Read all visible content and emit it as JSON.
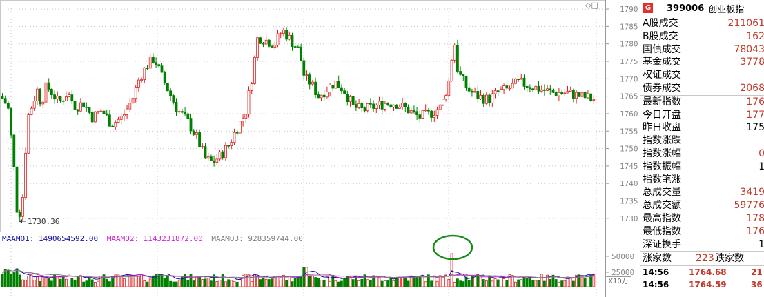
{
  "chart_data": {
    "type": "candlestick",
    "y_axis_ticks": [
      "1790",
      "1785",
      "1780",
      "1775",
      "1770",
      "1765",
      "1760",
      "1755",
      "1750",
      "1745",
      "1740",
      "1735",
      "1730"
    ],
    "ylim": [
      1727,
      1791
    ],
    "low_annotation": "1730.36",
    "volume_axis_ticks": [
      "50000",
      "25000"
    ],
    "volume_units": "X10万",
    "ma_legend": [
      {
        "label": "MAAMO1: 1490654592.00",
        "color": "#1010a0"
      },
      {
        "label": "MAAMO2: 1143231872.00",
        "color": "#d020d0"
      },
      {
        "label": "MAAMO3: 928359744.00",
        "color": "#808080"
      }
    ],
    "up_color": "#e02020",
    "down_color": "#008000"
  },
  "panel": {
    "badge": "G",
    "code": "399006",
    "name": "创业板指",
    "trade_rows": [
      {
        "label": "A股成交",
        "value": "211061"
      },
      {
        "label": "B股成交",
        "value": "162"
      },
      {
        "label": "国债成交",
        "value": "78043"
      },
      {
        "label": "基金成交",
        "value": "3778"
      },
      {
        "label": "权证成交",
        "value": ""
      },
      {
        "label": "债券成交",
        "value": "2068"
      }
    ],
    "index_rows": [
      {
        "label": "最新指数",
        "value": "176",
        "color": "red"
      },
      {
        "label": "今日开盘",
        "value": "177",
        "color": "red"
      },
      {
        "label": "昨日收盘",
        "value": "175",
        "color": "black"
      },
      {
        "label": "指数涨跌",
        "value": "",
        "color": "red"
      },
      {
        "label": "指数涨幅",
        "value": "0",
        "color": "red"
      },
      {
        "label": "指数振幅",
        "value": "1",
        "color": "black"
      },
      {
        "label": "指数笔涨",
        "value": "",
        "color": "red"
      },
      {
        "label": "总成交量",
        "value": "3419",
        "color": "red"
      },
      {
        "label": "总成交额",
        "value": "59776",
        "color": "red"
      },
      {
        "label": "最高指数",
        "value": "178",
        "color": "red"
      },
      {
        "label": "最低指数",
        "value": "176",
        "color": "red"
      },
      {
        "label": "深证换手",
        "value": "1",
        "color": "black"
      }
    ],
    "stats": {
      "up_label": "涨家数",
      "up_value": "223",
      "down_label": "跌家数"
    },
    "ticks": [
      {
        "time": "14:56",
        "price": "1764.68",
        "vol": "21"
      },
      {
        "time": "14:56",
        "price": "1764.59",
        "vol": "36"
      }
    ]
  },
  "toggle_icon": "diamond-icon"
}
